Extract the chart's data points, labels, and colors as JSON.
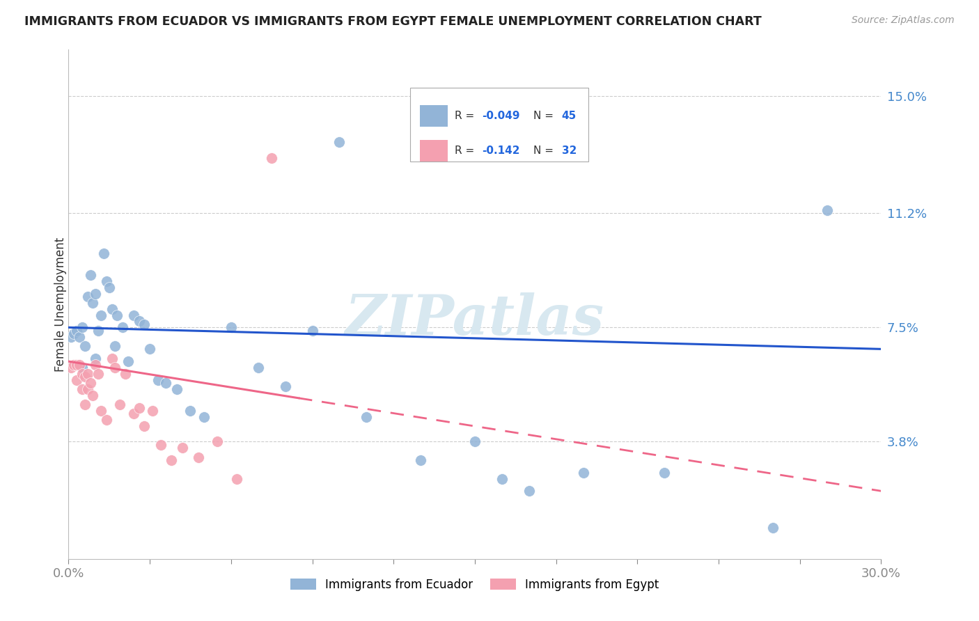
{
  "title": "IMMIGRANTS FROM ECUADOR VS IMMIGRANTS FROM EGYPT FEMALE UNEMPLOYMENT CORRELATION CHART",
  "source": "Source: ZipAtlas.com",
  "ylabel": "Female Unemployment",
  "xlim": [
    0.0,
    0.3
  ],
  "ylim": [
    0.0,
    0.165
  ],
  "yticks": [
    0.038,
    0.075,
    0.112,
    0.15
  ],
  "ytick_labels": [
    "3.8%",
    "7.5%",
    "11.2%",
    "15.0%"
  ],
  "xticks": [
    0.0,
    0.03,
    0.06,
    0.09,
    0.12,
    0.15,
    0.18,
    0.21,
    0.24,
    0.27,
    0.3
  ],
  "ecuador_R": "-0.049",
  "ecuador_N": "45",
  "egypt_R": "-0.142",
  "egypt_N": "32",
  "ecuador_color": "#92B4D7",
  "egypt_color": "#F4A0B0",
  "ecuador_line_color": "#2255CC",
  "egypt_line_color": "#EE6688",
  "watermark_color": "#D8E8F0",
  "ecuador_x": [
    0.001,
    0.002,
    0.003,
    0.004,
    0.005,
    0.005,
    0.006,
    0.007,
    0.008,
    0.009,
    0.01,
    0.01,
    0.011,
    0.012,
    0.013,
    0.014,
    0.015,
    0.016,
    0.017,
    0.018,
    0.02,
    0.022,
    0.024,
    0.026,
    0.028,
    0.03,
    0.033,
    0.036,
    0.04,
    0.045,
    0.05,
    0.06,
    0.07,
    0.08,
    0.09,
    0.1,
    0.11,
    0.13,
    0.15,
    0.16,
    0.17,
    0.19,
    0.22,
    0.26,
    0.28
  ],
  "ecuador_y": [
    0.072,
    0.073,
    0.074,
    0.072,
    0.075,
    0.062,
    0.069,
    0.085,
    0.092,
    0.083,
    0.086,
    0.065,
    0.074,
    0.079,
    0.099,
    0.09,
    0.088,
    0.081,
    0.069,
    0.079,
    0.075,
    0.064,
    0.079,
    0.077,
    0.076,
    0.068,
    0.058,
    0.057,
    0.055,
    0.048,
    0.046,
    0.075,
    0.062,
    0.056,
    0.074,
    0.135,
    0.046,
    0.032,
    0.038,
    0.026,
    0.022,
    0.028,
    0.028,
    0.01,
    0.113
  ],
  "egypt_x": [
    0.001,
    0.002,
    0.003,
    0.003,
    0.004,
    0.005,
    0.005,
    0.006,
    0.006,
    0.007,
    0.007,
    0.008,
    0.009,
    0.01,
    0.011,
    0.012,
    0.014,
    0.016,
    0.017,
    0.019,
    0.021,
    0.024,
    0.026,
    0.028,
    0.031,
    0.034,
    0.038,
    0.042,
    0.048,
    0.055,
    0.062,
    0.075
  ],
  "egypt_y": [
    0.062,
    0.063,
    0.063,
    0.058,
    0.063,
    0.055,
    0.06,
    0.05,
    0.059,
    0.055,
    0.06,
    0.057,
    0.053,
    0.063,
    0.06,
    0.048,
    0.045,
    0.065,
    0.062,
    0.05,
    0.06,
    0.047,
    0.049,
    0.043,
    0.048,
    0.037,
    0.032,
    0.036,
    0.033,
    0.038,
    0.026,
    0.13
  ],
  "ecuador_line_x0": 0.0,
  "ecuador_line_y0": 0.075,
  "ecuador_line_x1": 0.3,
  "ecuador_line_y1": 0.068,
  "egypt_line_x0": 0.0,
  "egypt_line_y0": 0.064,
  "egypt_line_xsolid": 0.085,
  "egypt_line_x1": 0.3,
  "egypt_line_y1": 0.022
}
